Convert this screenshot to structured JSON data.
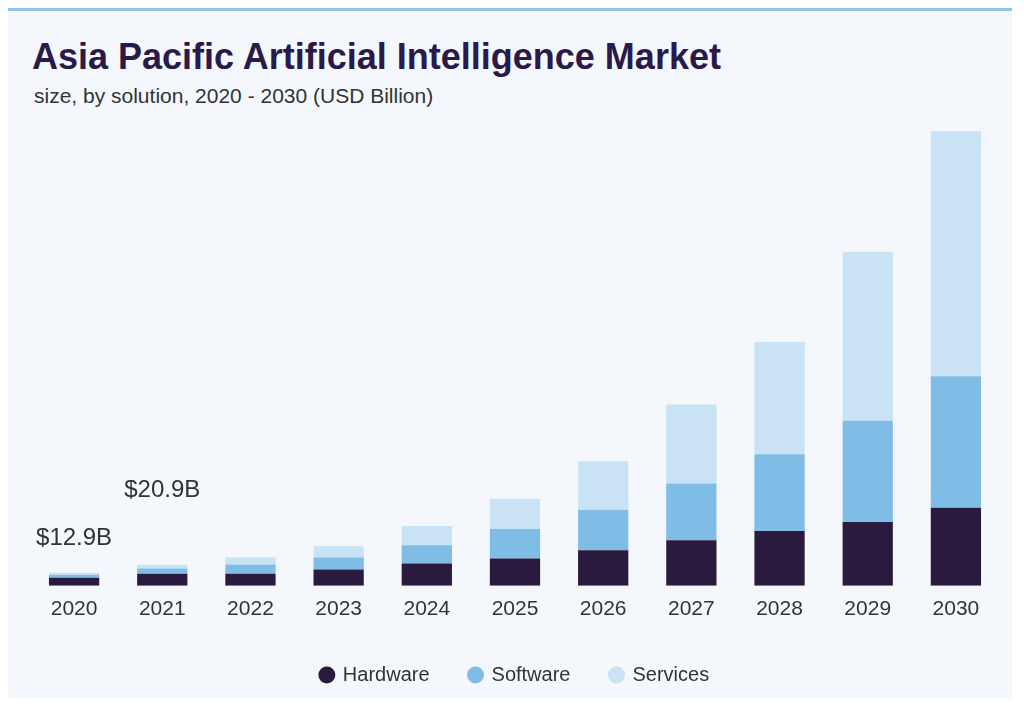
{
  "chart_data": {
    "type": "bar",
    "title": "Asia Pacific Artificial Intelligence Market",
    "subtitle": "size, by solution, 2020 - 2030 (USD Billion)",
    "categories": [
      "2020",
      "2021",
      "2022",
      "2023",
      "2024",
      "2025",
      "2026",
      "2027",
      "2028",
      "2029",
      "2030"
    ],
    "series": [
      {
        "name": "Hardware",
        "color": "#2a1a3e",
        "values": [
          8,
          12,
          12,
          16,
          22,
          27,
          35,
          45,
          54,
          63,
          77
        ]
      },
      {
        "name": "Software",
        "color": "#7fbde6",
        "values": [
          2.9,
          5,
          9,
          12,
          18,
          29,
          40,
          56,
          76,
          100,
          130
        ]
      },
      {
        "name": "Services",
        "color": "#c9e3f5",
        "values": [
          2,
          3.9,
          7,
          11,
          19,
          30,
          48,
          78,
          111,
          167,
          242
        ]
      }
    ],
    "annotations": [
      {
        "text": "$12.9B",
        "category": "2020",
        "value": 12.9
      },
      {
        "text": "$20.9B",
        "category": "2021",
        "value": 20.9
      }
    ],
    "ylim": [
      0,
      460
    ],
    "stacked": true,
    "grid": false,
    "legend": "bottom",
    "tick_labels": "x"
  }
}
